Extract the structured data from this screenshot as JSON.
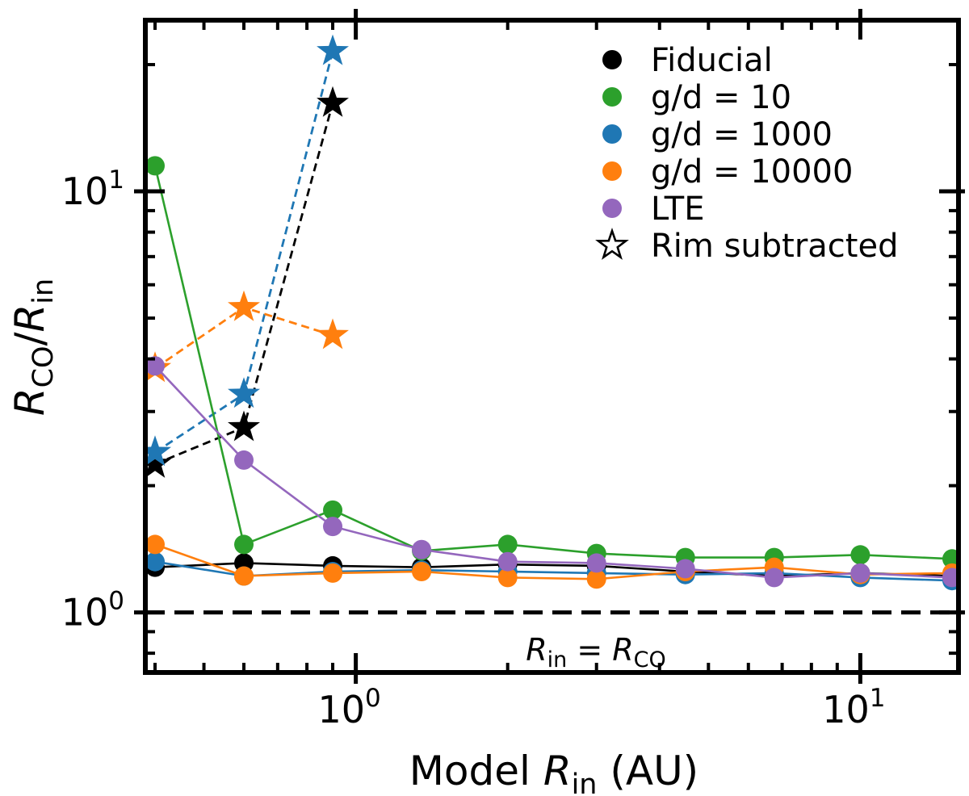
{
  "chart_data": {
    "type": "line",
    "xscale": "log",
    "yscale": "log",
    "xlabel_prefix": "Model ",
    "xlabel_var": "R",
    "xlabel_sub": "in",
    "xlabel_suffix": " (AU)",
    "ylabel_num_var": "R",
    "ylabel_num_sub": "CO",
    "ylabel_den_var": "R",
    "ylabel_den_sub": "in",
    "xlim": [
      0.4,
      15.2
    ],
    "ylim": [
      0.72,
      25.5
    ],
    "x_major_ticks": [
      1,
      10
    ],
    "x_tick_labels": [
      {
        "base": "10",
        "exp": "0"
      },
      {
        "base": "10",
        "exp": "1"
      }
    ],
    "y_major_ticks": [
      1,
      10
    ],
    "y_tick_labels": [
      {
        "base": "10",
        "exp": "0"
      },
      {
        "base": "10",
        "exp": "1"
      }
    ],
    "x": [
      0.4,
      0.6,
      0.9,
      1.35,
      2.0,
      3.0,
      4.5,
      6.75,
      10.0,
      15.2
    ],
    "reference_line": {
      "y": 1.0,
      "label_var_left": "R",
      "label_sub_left": "in",
      "label_eq": "=",
      "label_var_right": "R",
      "label_sub_right": "CO"
    },
    "series": [
      {
        "name": "Fiducial",
        "color": "#000000",
        "values": [
          1.28,
          1.31,
          1.29,
          1.28,
          1.3,
          1.29,
          1.25,
          1.22,
          1.24,
          1.22
        ]
      },
      {
        "name": "g/d = 10",
        "color": "#2ca02c",
        "values": [
          11.5,
          1.45,
          1.75,
          1.4,
          1.45,
          1.38,
          1.35,
          1.35,
          1.37,
          1.34
        ]
      },
      {
        "name": "g/d = 1000",
        "color": "#1f77b4",
        "values": [
          1.32,
          1.22,
          1.25,
          1.26,
          1.25,
          1.24,
          1.23,
          1.24,
          1.21,
          1.19
        ]
      },
      {
        "name": "g/d = 10000",
        "color": "#ff7f0e",
        "values": [
          1.45,
          1.22,
          1.24,
          1.25,
          1.21,
          1.2,
          1.25,
          1.28,
          1.23,
          1.24
        ]
      },
      {
        "name": "LTE",
        "color": "#9467bd",
        "values": [
          3.85,
          2.3,
          1.6,
          1.41,
          1.32,
          1.31,
          1.27,
          1.21,
          1.24,
          1.21
        ]
      }
    ],
    "rim_subtracted": [
      {
        "name": "Fiducial",
        "color": "#000000",
        "x": [
          0.4,
          0.6,
          0.9
        ],
        "values": [
          2.25,
          2.75,
          16.2
        ]
      },
      {
        "name": "g/d = 1000",
        "color": "#1f77b4",
        "x": [
          0.4,
          0.6,
          0.9
        ],
        "values": [
          2.4,
          3.3,
          21.5
        ]
      },
      {
        "name": "g/d = 10000",
        "color": "#ff7f0e",
        "x": [
          0.4,
          0.6,
          0.9
        ],
        "values": [
          3.8,
          5.3,
          4.55
        ]
      }
    ],
    "legend": {
      "placement": "top-right",
      "entries": [
        {
          "label": "Fiducial",
          "color": "#000000",
          "marker": "circle"
        },
        {
          "label": "g/d = 10",
          "color": "#2ca02c",
          "marker": "circle"
        },
        {
          "label": "g/d = 1000",
          "color": "#1f77b4",
          "marker": "circle"
        },
        {
          "label": "g/d = 10000",
          "color": "#ff7f0e",
          "marker": "circle"
        },
        {
          "label": "LTE",
          "color": "#9467bd",
          "marker": "circle"
        },
        {
          "label": "Rim subtracted",
          "color": "#000000",
          "marker": "star-open"
        }
      ]
    }
  }
}
